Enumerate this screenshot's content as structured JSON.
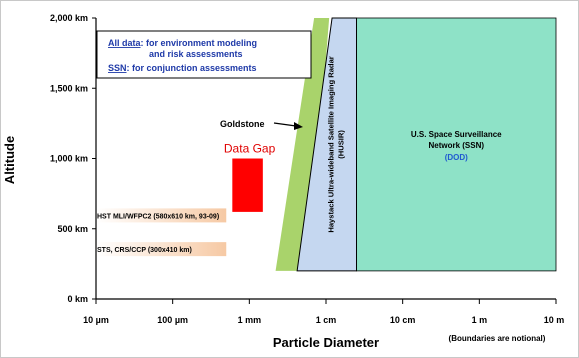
{
  "chart_data": {
    "type": "area",
    "xlabel": "Particle Diameter",
    "ylabel": "Altitude",
    "x_scale": "log",
    "x_ticks": [
      {
        "value": 1e-05,
        "label": "10 µm"
      },
      {
        "value": 0.0001,
        "label": "100 µm"
      },
      {
        "value": 0.001,
        "label": "1 mm"
      },
      {
        "value": 0.01,
        "label": "1 cm"
      },
      {
        "value": 0.1,
        "label": "10 cm"
      },
      {
        "value": 1,
        "label": "1 m"
      },
      {
        "value": 10,
        "label": "10 m"
      }
    ],
    "y_ticks": [
      {
        "value": 0,
        "label": "0 km"
      },
      {
        "value": 500,
        "label": "500 km"
      },
      {
        "value": 1000,
        "label": "1,000 km"
      },
      {
        "value": 1500,
        "label": "1,500 km"
      },
      {
        "value": 2000,
        "label": "2,000 km"
      }
    ],
    "xlim": [
      1e-05,
      10
    ],
    "ylim": [
      0,
      2000
    ],
    "boundaries_note": "(Boundaries are notional)",
    "legend": {
      "line1_link": "All data",
      "line1_text": ": for environment modeling",
      "line2_text": "and risk assessments",
      "line3_link": "SSN",
      "line3_text": ": for conjunction assessments"
    },
    "regions": [
      {
        "id": "hst",
        "label": "HST MLI/WFPC2 (580x610 km, 93-09)",
        "x": [
          1e-05,
          0.0005
        ],
        "y": [
          580,
          610
        ],
        "color": "#f6c9a4"
      },
      {
        "id": "sts",
        "label": "STS, CRS/CCP (300x410 km)",
        "x": [
          1e-05,
          0.0005
        ],
        "y": [
          300,
          410
        ],
        "color": "#f6c9a4"
      },
      {
        "id": "goldstone",
        "label": "Goldstone",
        "polygon": [
          [
            0.0022,
            200
          ],
          [
            0.006,
            200
          ],
          [
            0.011,
            2000
          ],
          [
            0.007,
            2000
          ]
        ],
        "color": "#a9d36b"
      },
      {
        "id": "husir",
        "label_line1": "Haystack Ultra-wideband Satellite Imaging Radar",
        "label_line2": "(HUSIR)",
        "polygon": [
          [
            0.0042,
            200
          ],
          [
            0.025,
            200
          ],
          [
            0.025,
            2000
          ],
          [
            0.012,
            2000
          ]
        ],
        "color": "#c5d7f0"
      },
      {
        "id": "ssn",
        "label_line1": "U.S. Space Surveillance",
        "label_line2": "Network (SSN)",
        "label_line3": "(DOD)",
        "x": [
          0.025,
          10
        ],
        "y": [
          200,
          2000
        ],
        "color": "#8ee2c7"
      }
    ],
    "data_gap": {
      "label": "Data Gap",
      "x": [
        0.0006,
        0.0015
      ],
      "y": [
        620,
        1000
      ],
      "color": "#ff0000"
    },
    "colors": {
      "link": "#1f3aa8",
      "dod": "#1f5ad0",
      "data_gap_label": "#e00000"
    }
  }
}
